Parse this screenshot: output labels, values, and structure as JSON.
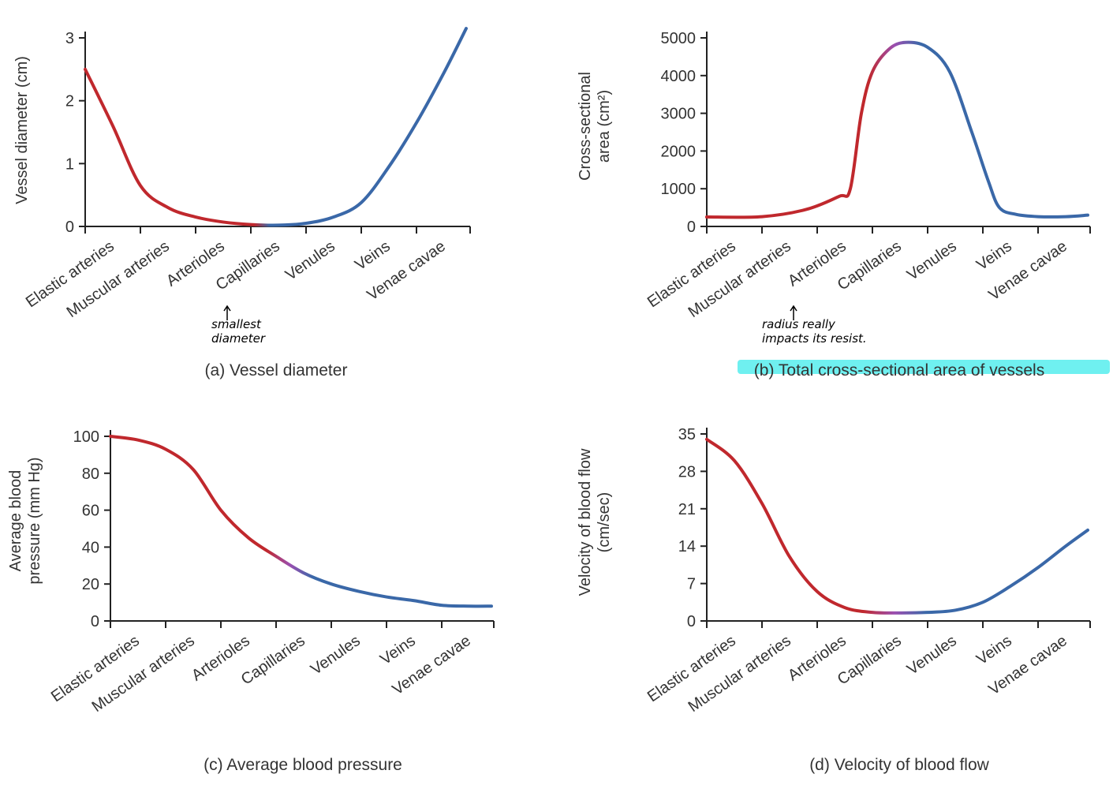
{
  "colors": {
    "arterial": "#c0282d",
    "transition": "#9b4fb0",
    "venous": "#3a68a8",
    "highlight": "#6ff0f0"
  },
  "chart_data": [
    {
      "type": "line",
      "title": "(a) Vessel diameter",
      "ylabel": "Vessel diameter (cm)",
      "categories": [
        "Elastic arteries",
        "Muscular arteries",
        "Arterioles",
        "Capillaries",
        "Venules",
        "Veins",
        "Venae cavae"
      ],
      "yticks": [
        0,
        1,
        2,
        3
      ],
      "ylim": [
        0,
        3
      ],
      "x": [
        0,
        0.5,
        1,
        1.5,
        2,
        2.5,
        3,
        3.5,
        4,
        4.5,
        5,
        5.5,
        6,
        6.5,
        6.9
      ],
      "y": [
        2.5,
        1.6,
        0.65,
        0.3,
        0.15,
        0.07,
        0.03,
        0.02,
        0.05,
        0.15,
        0.38,
        0.95,
        1.65,
        2.45,
        3.15
      ],
      "color_change": {
        "red_to_blue_at": 3.2
      },
      "annotation": {
        "arrow_to": "Capillaries",
        "text": [
          "smallest",
          "diameter"
        ]
      }
    },
    {
      "type": "line",
      "title_prefix": "(b)",
      "title": "Total cross-sectional area of vessels",
      "ylabel": [
        "Cross-sectional",
        "area (cm²)"
      ],
      "categories": [
        "Elastic arteries",
        "Muscular arteries",
        "Arterioles",
        "Capillaries",
        "Venules",
        "Veins",
        "Venae cavae"
      ],
      "yticks": [
        0,
        1000,
        2000,
        3000,
        4000,
        5000
      ],
      "ylim": [
        0,
        5000
      ],
      "x": [
        0,
        1,
        1.8,
        2.4,
        2.6,
        2.8,
        3.0,
        3.3,
        3.6,
        4.0,
        4.4,
        4.8,
        5.1,
        5.3,
        5.6,
        6.0,
        6.5,
        6.9
      ],
      "y": [
        250,
        260,
        450,
        800,
        1000,
        3000,
        4100,
        4700,
        4880,
        4750,
        4100,
        2500,
        1200,
        500,
        320,
        260,
        260,
        300
      ],
      "color_change": {
        "red_to_purple_at": 3.0,
        "purple_to_blue_at": 3.8
      },
      "annotation": {
        "arrow_to": "Arterioles",
        "text": [
          "radius really",
          "impacts its resist."
        ]
      },
      "highlighted_title": true
    },
    {
      "type": "line",
      "title": "(c) Average blood pressure",
      "ylabel": [
        "Average blood",
        "pressure (mm Hg)"
      ],
      "categories": [
        "Elastic arteries",
        "Muscular arteries",
        "Arterioles",
        "Capillaries",
        "Venules",
        "Veins",
        "Venae cavae"
      ],
      "yticks": [
        0,
        20,
        40,
        60,
        80,
        100
      ],
      "ylim": [
        0,
        100
      ],
      "x": [
        0,
        0.5,
        1,
        1.5,
        2,
        2.5,
        3,
        3.5,
        4,
        4.5,
        5,
        5.5,
        6,
        6.5,
        6.9
      ],
      "y": [
        100,
        98,
        93,
        82,
        60,
        45,
        35,
        26,
        20,
        16,
        13,
        11,
        8.5,
        8,
        8
      ],
      "color_change": {
        "red_to_purple_at": 2.9,
        "purple_to_blue_at": 3.6
      }
    },
    {
      "type": "line",
      "title": "(d) Velocity of blood flow",
      "ylabel": [
        "Velocity of blood flow",
        "(cm/sec)"
      ],
      "categories": [
        "Elastic arteries",
        "Muscular arteries",
        "Arterioles",
        "Capillaries",
        "Venules",
        "Veins",
        "Venae cavae"
      ],
      "yticks": [
        0,
        7,
        14,
        21,
        28,
        35
      ],
      "ylim": [
        0,
        35
      ],
      "x": [
        0,
        0.5,
        1,
        1.5,
        2,
        2.5,
        3,
        3.5,
        4,
        4.5,
        5,
        5.5,
        6,
        6.5,
        6.9
      ],
      "y": [
        34,
        30,
        22,
        12,
        5.5,
        2.5,
        1.6,
        1.5,
        1.6,
        2,
        3.5,
        6.5,
        10,
        14,
        17
      ],
      "color_change": {
        "red_to_purple_at": 2.9,
        "purple_to_blue_at": 3.9
      }
    }
  ]
}
